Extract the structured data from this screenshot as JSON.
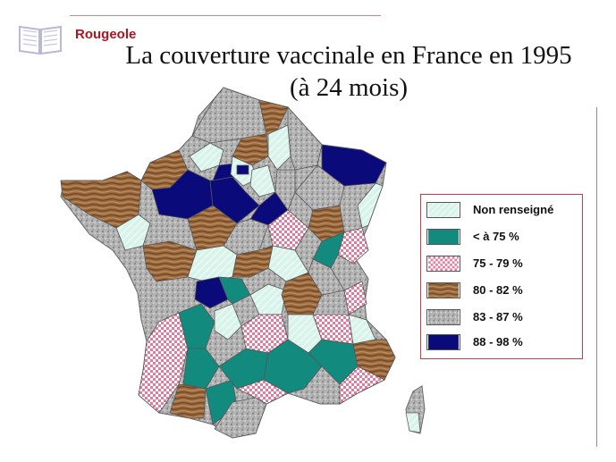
{
  "header": {
    "section_label": "Rougeole",
    "title_line1": "La couverture vaccinale en France en 1995",
    "title_line2": "(à 24 mois)"
  },
  "map": {
    "subject": "France départements",
    "categories": [
      {
        "key": "nr",
        "label": "Non renseigné",
        "color": "#d8f3ea",
        "pattern": "pale"
      },
      {
        "key": "lt75",
        "label": "< à 75  %",
        "color": "#138a7e",
        "pattern": "solid"
      },
      {
        "key": "c75",
        "label": "75 - 79 %",
        "color": "#e27a9a",
        "pattern": "check"
      },
      {
        "key": "c80",
        "label": "80 - 82 %",
        "color": "#8a5a33",
        "pattern": "wood"
      },
      {
        "key": "c83",
        "label": "83 - 87 %",
        "color": "#a6a6a6",
        "pattern": "granite"
      },
      {
        "key": "c88",
        "label": "88 - 98 %",
        "color": "#0a0a7a",
        "pattern": "solid"
      }
    ]
  },
  "icons": {
    "book": "open-book-icon"
  },
  "colors": {
    "accent_red": "#b0141e",
    "rule": "#d98080"
  }
}
